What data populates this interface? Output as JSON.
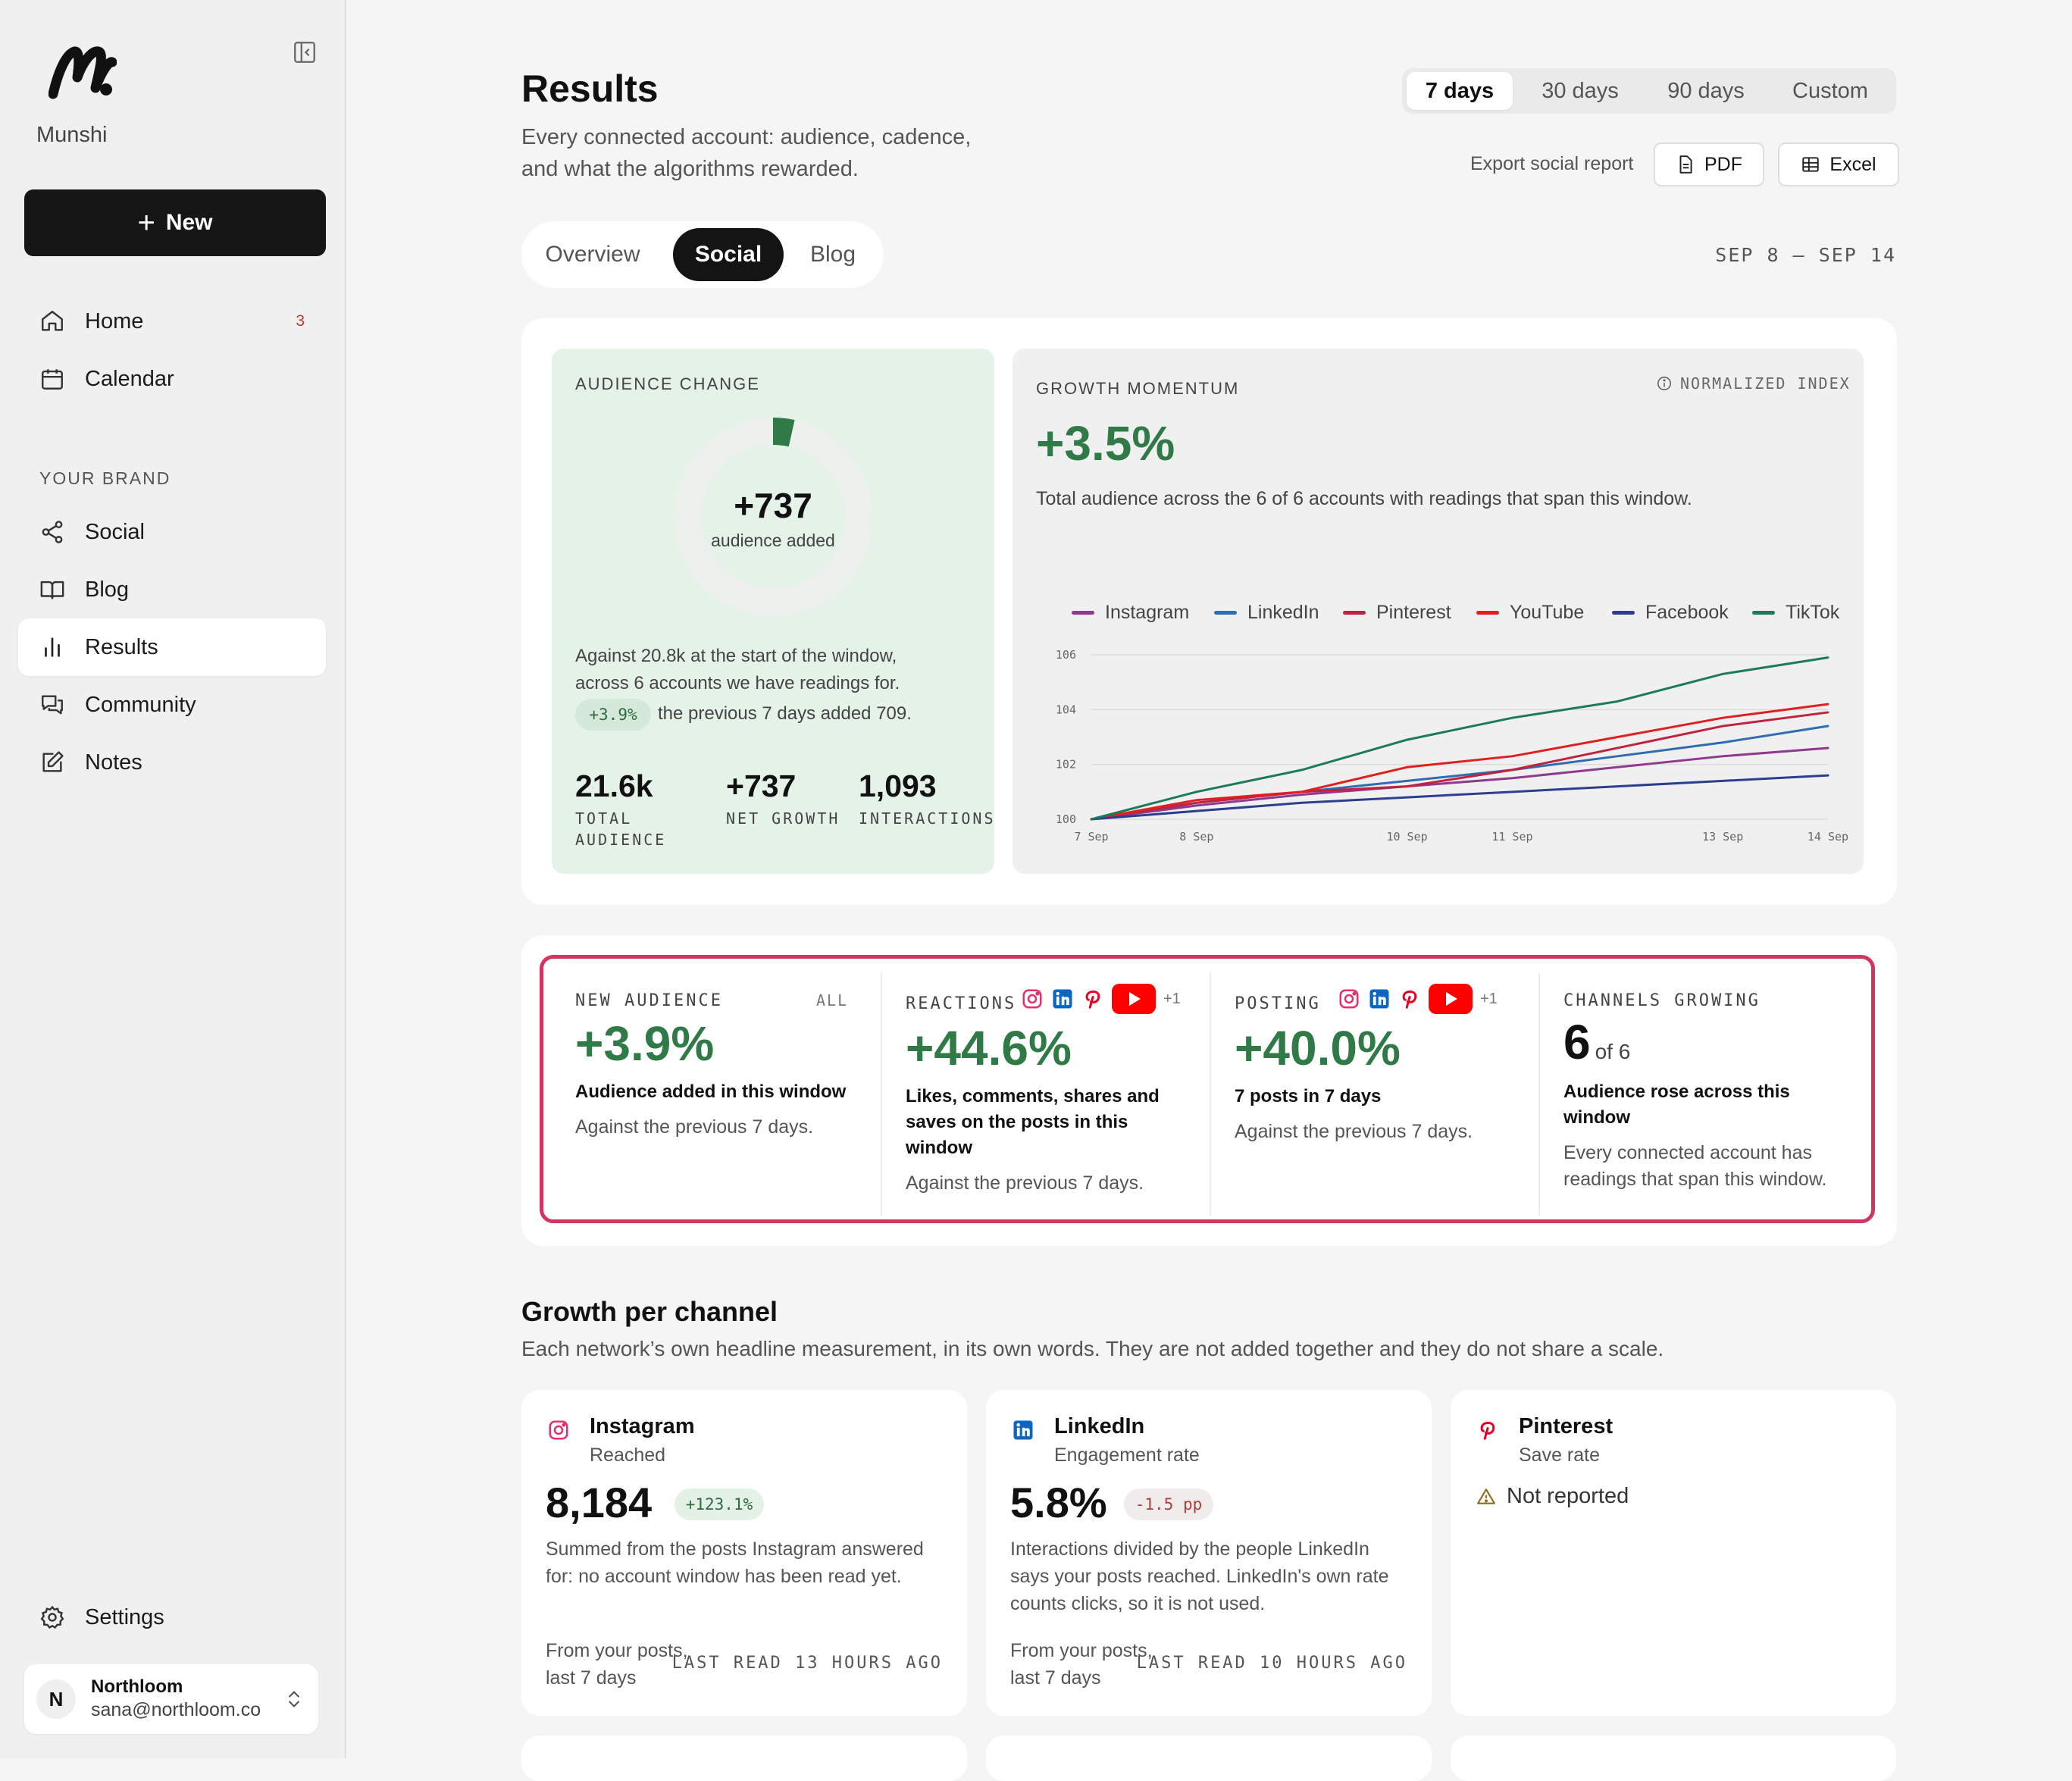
{
  "sidebar": {
    "brand": "Munshi",
    "new_label": "New",
    "nav": [
      {
        "label": "Home",
        "badge": "3"
      },
      {
        "label": "Calendar"
      }
    ],
    "section_label": "YOUR BRAND",
    "brand_nav": [
      {
        "label": "Social"
      },
      {
        "label": "Blog"
      },
      {
        "label": "Results"
      },
      {
        "label": "Community"
      },
      {
        "label": "Notes"
      }
    ],
    "settings_label": "Settings",
    "user": {
      "initial": "N",
      "name": "Northloom",
      "email": "sana@northloom.co"
    }
  },
  "header": {
    "title": "Results",
    "subtitle": "Every connected account: audience, cadence, and what the algorithms rewarded.",
    "range_tabs": [
      "7 days",
      "30 days",
      "90 days",
      "Custom"
    ],
    "active_range": "7 days",
    "export_label": "Export social report",
    "export_pdf": "PDF",
    "export_excel": "Excel",
    "tabs": [
      "Overview",
      "Social",
      "Blog"
    ],
    "active_tab": "Social",
    "date_range": "SEP 8 – SEP 14"
  },
  "audience": {
    "label": "AUDIENCE CHANGE",
    "value": "+737",
    "value_label": "audience added",
    "ring_fraction": 0.035,
    "line1": "Against 20.8k at the start of the window,",
    "line2": "across 6 accounts we have readings for.",
    "pill": "+3.9%",
    "line3": "the previous 7 days added 709.",
    "stats": [
      {
        "value": "21.6k",
        "label": "TOTAL",
        "label2": "AUDIENCE"
      },
      {
        "value": "+737",
        "label": "NET GROWTH"
      },
      {
        "value": "1,093",
        "label": "INTERACTIONS"
      }
    ]
  },
  "momentum": {
    "label": "GROWTH MOMENTUM",
    "badge": "NORMALIZED INDEX",
    "value": "+3.5%",
    "text": "Total audience across the 6 of 6 accounts with readings that span this window."
  },
  "chart_data": {
    "type": "line",
    "x": [
      "7 Sep",
      "8 Sep",
      "9 Sep",
      "10 Sep",
      "11 Sep",
      "12 Sep",
      "13 Sep",
      "14 Sep"
    ],
    "x_tick_labels": [
      "7 Sep",
      "8 Sep",
      "10 Sep",
      "11 Sep",
      "13 Sep",
      "14 Sep"
    ],
    "y_ticks": [
      "100",
      "102",
      "104",
      "106"
    ],
    "ylim": [
      100,
      106
    ],
    "series": [
      {
        "name": "Instagram",
        "color": "#8e3b8e",
        "values": [
          100,
          100.5,
          100.9,
          101.2,
          101.5,
          101.9,
          102.3,
          102.6
        ]
      },
      {
        "name": "LinkedIn",
        "color": "#2f6db3",
        "values": [
          100,
          100.6,
          101.0,
          101.4,
          101.8,
          102.3,
          102.8,
          103.4
        ]
      },
      {
        "name": "Pinterest",
        "color": "#c0233f",
        "values": [
          100,
          100.6,
          101.0,
          101.2,
          101.8,
          102.6,
          103.4,
          103.9
        ]
      },
      {
        "name": "YouTube",
        "color": "#e02020",
        "values": [
          100,
          100.7,
          101.0,
          101.9,
          102.3,
          103.0,
          103.7,
          104.2
        ]
      },
      {
        "name": "Facebook",
        "color": "#2d3e8f",
        "values": [
          100,
          100.3,
          100.6,
          100.8,
          101.0,
          101.2,
          101.4,
          101.6
        ]
      },
      {
        "name": "TikTok",
        "color": "#1e7a5c",
        "values": [
          100,
          101.0,
          101.8,
          102.9,
          103.7,
          104.3,
          105.3,
          105.9
        ]
      }
    ]
  },
  "metrics": [
    {
      "label": "NEW AUDIENCE",
      "tag": "ALL",
      "value": "+3.9%",
      "title": "Audience added in this window",
      "sub": "Against the previous 7 days."
    },
    {
      "label": "REACTIONS",
      "more": "+1",
      "value": "+44.6%",
      "title": "Likes, comments, shares and saves on the posts in this window",
      "sub": "Against the previous 7 days."
    },
    {
      "label": "POSTING",
      "more": "+1",
      "value": "+40.0%",
      "title": "7 posts in 7 days",
      "sub": "Against the previous 7 days."
    },
    {
      "label": "CHANNELS GROWING",
      "value": "6",
      "value_suffix": "of 6",
      "title": "Audience rose across this window",
      "sub": "Every connected account has readings that span this window."
    }
  ],
  "growth": {
    "title": "Growth per channel",
    "subtitle": "Each network’s own headline measurement, in its own words. They are not added together and they do not share a scale.",
    "channels": [
      {
        "name": "Instagram",
        "metric": "Reached",
        "value": "8,184",
        "delta": "+123.1%",
        "desc": "Summed from the posts Instagram answered for: no account window has been read yet.",
        "foot": "From your posts, last 7 days",
        "last_read": "LAST READ 13 HOURS AGO"
      },
      {
        "name": "LinkedIn",
        "metric": "Engagement rate",
        "value": "5.8%",
        "delta": "-1.5 pp",
        "desc": "Interactions divided by the people LinkedIn says your posts reached. LinkedIn's own rate counts clicks, so it is not used.",
        "foot": "From your posts, last 7 days",
        "last_read": "LAST READ 10 HOURS AGO"
      },
      {
        "name": "Pinterest",
        "metric": "Save rate",
        "status": "Not reported"
      }
    ]
  },
  "colors": {
    "accent_green": "#2f7a46",
    "highlight_border": "#d1365f",
    "instagram": "#e1306c",
    "linkedin": "#0a66c2",
    "pinterest": "#e60023",
    "youtube": "#ff0000"
  }
}
